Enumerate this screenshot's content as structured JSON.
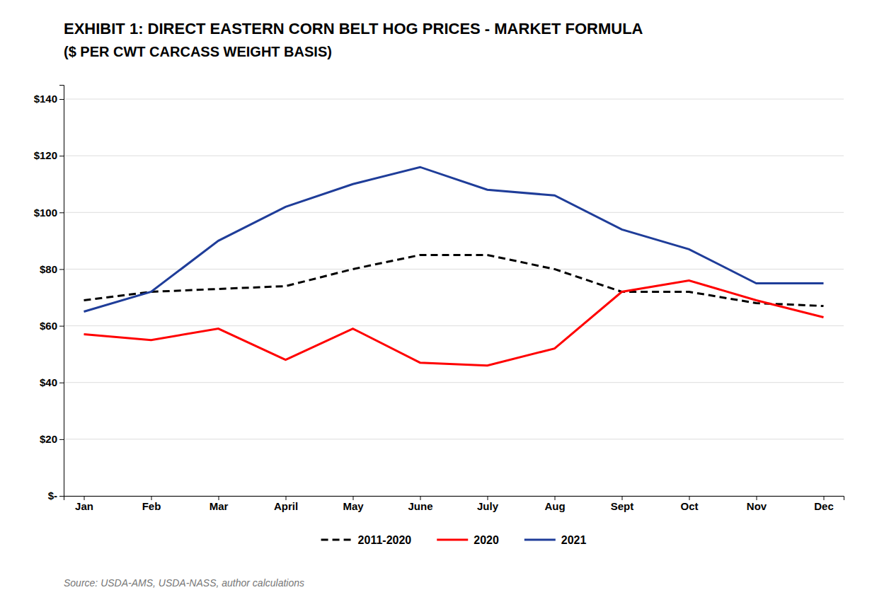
{
  "chart_data": {
    "type": "line",
    "title": "EXHIBIT 1: DIRECT EASTERN CORN BELT HOG PRICES - MARKET FORMULA",
    "subtitle": "($ PER CWT CARCASS WEIGHT BASIS)",
    "annotations": [
      "Source: USDA-AMS, USDA-NASS, author calculations"
    ],
    "categories": [
      "Jan",
      "Feb",
      "Mar",
      "April",
      "May",
      "June",
      "July",
      "Aug",
      "Sept",
      "Oct",
      "Nov",
      "Dec"
    ],
    "series": [
      {
        "name": "2011-2020",
        "color": "#000000",
        "line_style": "dashed",
        "values": [
          69,
          72,
          73,
          74,
          80,
          85,
          85,
          80,
          72,
          72,
          68,
          67
        ]
      },
      {
        "name": "2020",
        "color": "#ff0000",
        "line_style": "solid",
        "values": [
          57,
          55,
          59,
          48,
          59,
          47,
          46,
          52,
          72,
          76,
          69,
          63
        ]
      },
      {
        "name": "2021",
        "color": "#1f3d99",
        "line_style": "solid",
        "values": [
          65,
          72,
          90,
          102,
          110,
          116,
          108,
          106,
          94,
          87,
          75,
          75
        ]
      }
    ],
    "ylim": [
      0,
      145
    ],
    "yticks": [
      {
        "value": 0,
        "label": "$-"
      },
      {
        "value": 20,
        "label": "$20"
      },
      {
        "value": 40,
        "label": "$40"
      },
      {
        "value": 60,
        "label": "$60"
      },
      {
        "value": 80,
        "label": "$80"
      },
      {
        "value": 100,
        "label": "$100"
      },
      {
        "value": 120,
        "label": "$120"
      },
      {
        "value": 140,
        "label": "$140"
      }
    ],
    "grid": true,
    "legend": "bottom"
  }
}
